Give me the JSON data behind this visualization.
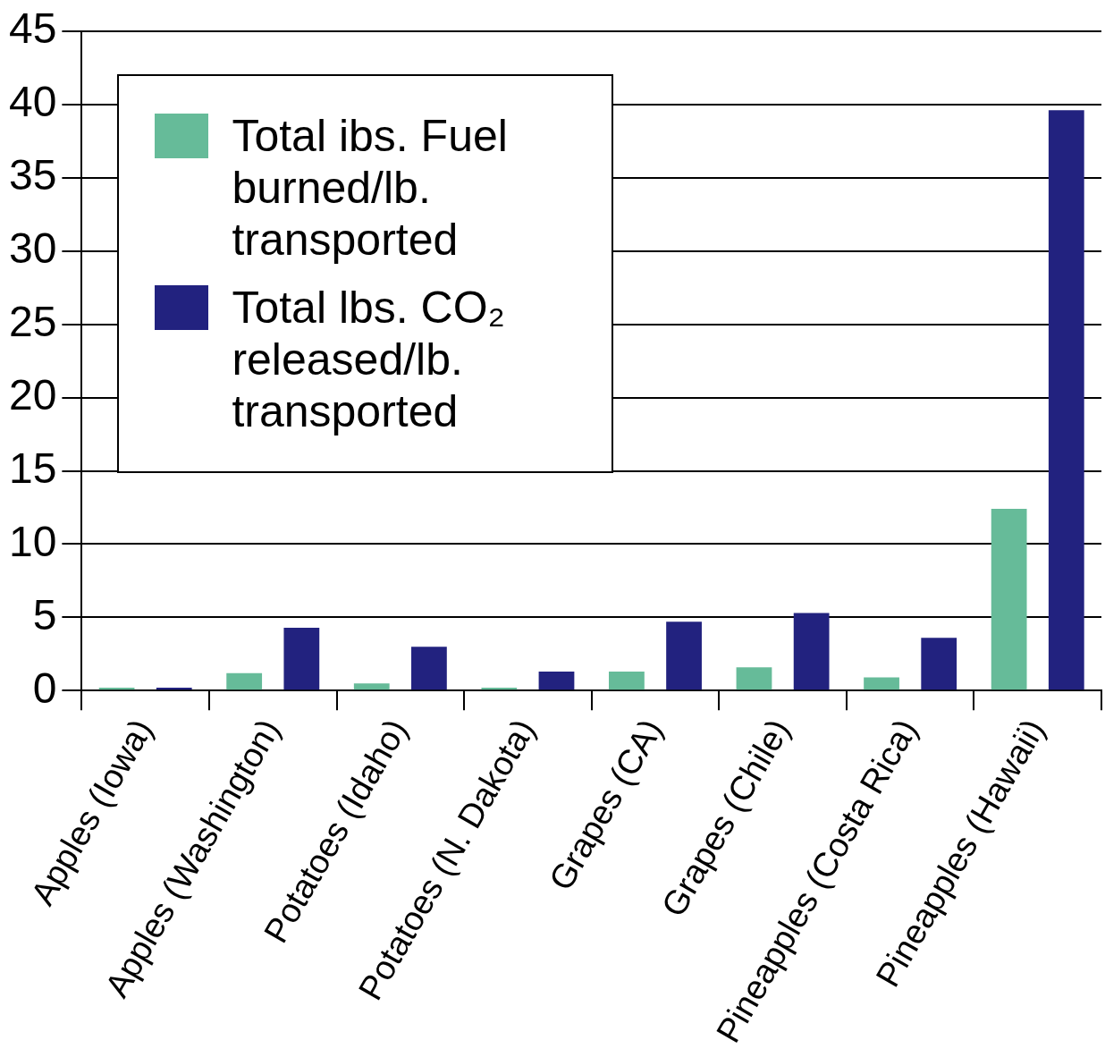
{
  "chart_data": {
    "type": "bar",
    "categories": [
      "Apples (Iowa)",
      "Apples (Washington)",
      "Potatoes (Idaho)",
      "Potatoes (N. Dakota)",
      "Grapes (CA)",
      "Grapes (Chile)",
      "Pineapples (Costa Rica)",
      "Pineapples (Hawaii)"
    ],
    "series": [
      {
        "name": "Total ibs. Fuel burned/lb. transported",
        "color": "#66bb99",
        "values": [
          0.2,
          1.2,
          0.5,
          0.2,
          1.3,
          1.6,
          0.9,
          12.4
        ]
      },
      {
        "name": "Total lbs. CO₂ released/lb. transported",
        "color": "#22227f",
        "values": [
          0.2,
          4.3,
          3.0,
          1.3,
          4.7,
          5.3,
          3.6,
          39.6
        ]
      }
    ],
    "ylim": [
      0,
      45
    ],
    "yticks": [
      0,
      5,
      10,
      15,
      20,
      25,
      30,
      35,
      40,
      45
    ],
    "grid": "y",
    "legend": "top left"
  }
}
